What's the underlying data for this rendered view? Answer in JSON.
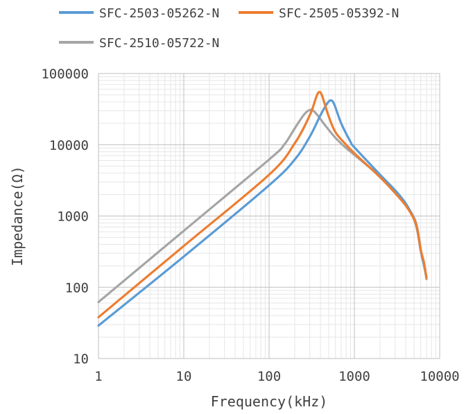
{
  "chart_data": {
    "type": "line",
    "title": "",
    "xlabel": "Frequency(kHz)",
    "ylabel": "Impedance(Ω)",
    "x_scale": "log",
    "y_scale": "log",
    "xlim": [
      1,
      10000
    ],
    "ylim": [
      10,
      100000
    ],
    "x_ticks": [
      "1",
      "10",
      "100",
      "1000",
      "10000"
    ],
    "y_ticks": [
      "10",
      "100",
      "1000",
      "10000",
      "100000"
    ],
    "grid": true,
    "legend_position": "top",
    "series": [
      {
        "name": "SFC-2503-05262-N",
        "color": "#5B9BD5",
        "points": [
          [
            1,
            29
          ],
          [
            10,
            270
          ],
          [
            100,
            2700
          ],
          [
            200,
            6200
          ],
          [
            300,
            13000
          ],
          [
            400,
            26000
          ],
          [
            480,
            38000
          ],
          [
            530,
            42000
          ],
          [
            580,
            37000
          ],
          [
            700,
            20000
          ],
          [
            900,
            11000
          ],
          [
            1000,
            9200
          ],
          [
            2000,
            3800
          ],
          [
            3000,
            2300
          ],
          [
            4000,
            1500
          ],
          [
            5000,
            900
          ],
          [
            5500,
            600
          ],
          [
            6000,
            320
          ],
          [
            6500,
            210
          ],
          [
            7000,
            140
          ]
        ]
      },
      {
        "name": "SFC-2505-05392-N",
        "color": "#ED7D31",
        "points": [
          [
            1,
            38
          ],
          [
            10,
            380
          ],
          [
            100,
            3800
          ],
          [
            200,
            10500
          ],
          [
            300,
            26000
          ],
          [
            360,
            48000
          ],
          [
            390,
            55000
          ],
          [
            420,
            48000
          ],
          [
            500,
            25000
          ],
          [
            600,
            15000
          ],
          [
            800,
            10000
          ],
          [
            1000,
            7600
          ],
          [
            2000,
            3500
          ],
          [
            3000,
            2100
          ],
          [
            4000,
            1400
          ],
          [
            5000,
            900
          ],
          [
            5500,
            620
          ],
          [
            6000,
            330
          ],
          [
            6500,
            230
          ],
          [
            7000,
            135
          ]
        ]
      },
      {
        "name": "SFC-2510-05722-N",
        "color": "#A5A5A5",
        "points": [
          [
            1,
            62
          ],
          [
            10,
            620
          ],
          [
            100,
            6200
          ],
          [
            150,
            10000
          ],
          [
            200,
            17000
          ],
          [
            260,
            27000
          ],
          [
            310,
            31000
          ],
          [
            360,
            27000
          ],
          [
            450,
            19000
          ],
          [
            600,
            12500
          ],
          [
            800,
            9000
          ],
          [
            1000,
            7200
          ],
          [
            2000,
            3600
          ],
          [
            3000,
            2200
          ],
          [
            4000,
            1450
          ],
          [
            5000,
            950
          ],
          [
            5500,
            650
          ],
          [
            6000,
            340
          ],
          [
            6500,
            220
          ],
          [
            7000,
            130
          ]
        ]
      }
    ]
  }
}
